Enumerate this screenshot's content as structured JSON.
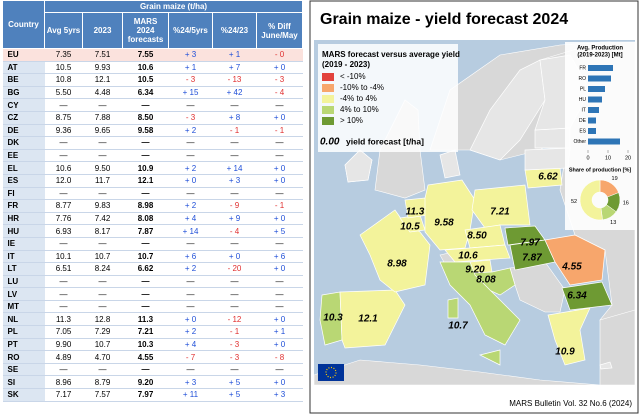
{
  "table": {
    "group_header": "Grain maize (t/ha)",
    "columns": [
      "Country",
      "Avg 5yrs",
      "2023",
      "MARS 2024 forecasts",
      "%24/5yrs",
      "%24/23",
      "% Diff June/May"
    ],
    "rows": [
      [
        "EU",
        "7.35",
        "7.51",
        "7.55",
        "+ 3",
        "+ 1",
        "- 0"
      ],
      [
        "AT",
        "10.5",
        "9.93",
        "10.6",
        "+ 1",
        "+ 7",
        "+ 0"
      ],
      [
        "BE",
        "10.8",
        "12.1",
        "10.5",
        "- 3",
        "- 13",
        "- 3"
      ],
      [
        "BG",
        "5.50",
        "4.48",
        "6.34",
        "+ 15",
        "+ 42",
        "- 4"
      ],
      [
        "CY",
        "—",
        "—",
        "—",
        "—",
        "—",
        "—"
      ],
      [
        "CZ",
        "8.75",
        "7.88",
        "8.50",
        "- 3",
        "+ 8",
        "+ 0"
      ],
      [
        "DE",
        "9.36",
        "9.65",
        "9.58",
        "+ 2",
        "- 1",
        "- 1"
      ],
      [
        "DK",
        "—",
        "—",
        "—",
        "—",
        "—",
        "—"
      ],
      [
        "EE",
        "—",
        "—",
        "—",
        "—",
        "—",
        "—"
      ],
      [
        "EL",
        "10.6",
        "9.50",
        "10.9",
        "+ 2",
        "+ 14",
        "+ 0"
      ],
      [
        "ES",
        "12.0",
        "11.7",
        "12.1",
        "+ 0",
        "+ 3",
        "+ 0"
      ],
      [
        "FI",
        "—",
        "—",
        "—",
        "—",
        "—",
        "—"
      ],
      [
        "FR",
        "8.77",
        "9.83",
        "8.98",
        "+ 2",
        "- 9",
        "- 1"
      ],
      [
        "HR",
        "7.76",
        "7.42",
        "8.08",
        "+ 4",
        "+ 9",
        "+ 0"
      ],
      [
        "HU",
        "6.93",
        "8.17",
        "7.87",
        "+ 14",
        "- 4",
        "+ 5"
      ],
      [
        "IE",
        "—",
        "—",
        "—",
        "—",
        "—",
        "—"
      ],
      [
        "IT",
        "10.1",
        "10.7",
        "10.7",
        "+ 6",
        "+ 0",
        "+ 6"
      ],
      [
        "LT",
        "6.51",
        "8.24",
        "6.62",
        "+ 2",
        "- 20",
        "+ 0"
      ],
      [
        "LU",
        "—",
        "—",
        "—",
        "—",
        "—",
        "—"
      ],
      [
        "LV",
        "—",
        "—",
        "—",
        "—",
        "—",
        "—"
      ],
      [
        "MT",
        "—",
        "—",
        "—",
        "—",
        "—",
        "—"
      ],
      [
        "NL",
        "11.3",
        "12.8",
        "11.3",
        "+ 0",
        "- 12",
        "+ 0"
      ],
      [
        "PL",
        "7.05",
        "7.29",
        "7.21",
        "+ 2",
        "- 1",
        "+ 1"
      ],
      [
        "PT",
        "9.90",
        "10.7",
        "10.3",
        "+ 4",
        "- 3",
        "+ 0"
      ],
      [
        "RO",
        "4.89",
        "4.70",
        "4.55",
        "- 7",
        "- 3",
        "- 8"
      ],
      [
        "SE",
        "—",
        "—",
        "—",
        "—",
        "—",
        "—"
      ],
      [
        "SI",
        "8.96",
        "8.79",
        "9.20",
        "+ 3",
        "+ 5",
        "+ 0"
      ],
      [
        "SK",
        "7.17",
        "7.57",
        "7.97",
        "+ 11",
        "+ 5",
        "+ 3"
      ]
    ]
  },
  "map": {
    "title": "Grain maize - yield forecast 2024",
    "legend_title": [
      "MARS forecast versus average yield",
      "(2019 - 2023)"
    ],
    "legend_items": [
      "< -10%",
      "-10% to -4%",
      "-4% to 4%",
      "4% to 10%",
      "> 10%"
    ],
    "legend_colors": [
      "#e2423c",
      "#f7a66c",
      "#f3f39b",
      "#b9d774",
      "#6e9a33"
    ],
    "sample_label": "0.00",
    "sample_text": "yield forecast [t/ha]",
    "footer": "MARS Bulletin Vol. 32 No.6 (2024)"
  },
  "production_chart": {
    "type": "bar",
    "title": [
      "Avg. Production",
      "(2019-2023) [Mt]"
    ],
    "categories": [
      "FR",
      "RO",
      "PL",
      "HU",
      "IT",
      "DE",
      "ES",
      "Other"
    ],
    "values": [
      12.5,
      11.5,
      8.5,
      7,
      5.5,
      4,
      4,
      16
    ],
    "xlim": [
      0,
      20
    ],
    "xticks": [
      0,
      10,
      20
    ],
    "color": "#2e75b6"
  },
  "share_chart": {
    "type": "pie",
    "title": "Share of production [%]",
    "values": [
      19,
      16,
      13,
      52
    ],
    "colors": [
      "#f7a66c",
      "#6e9a33",
      "#b9d774",
      "#f3f39b"
    ]
  }
}
